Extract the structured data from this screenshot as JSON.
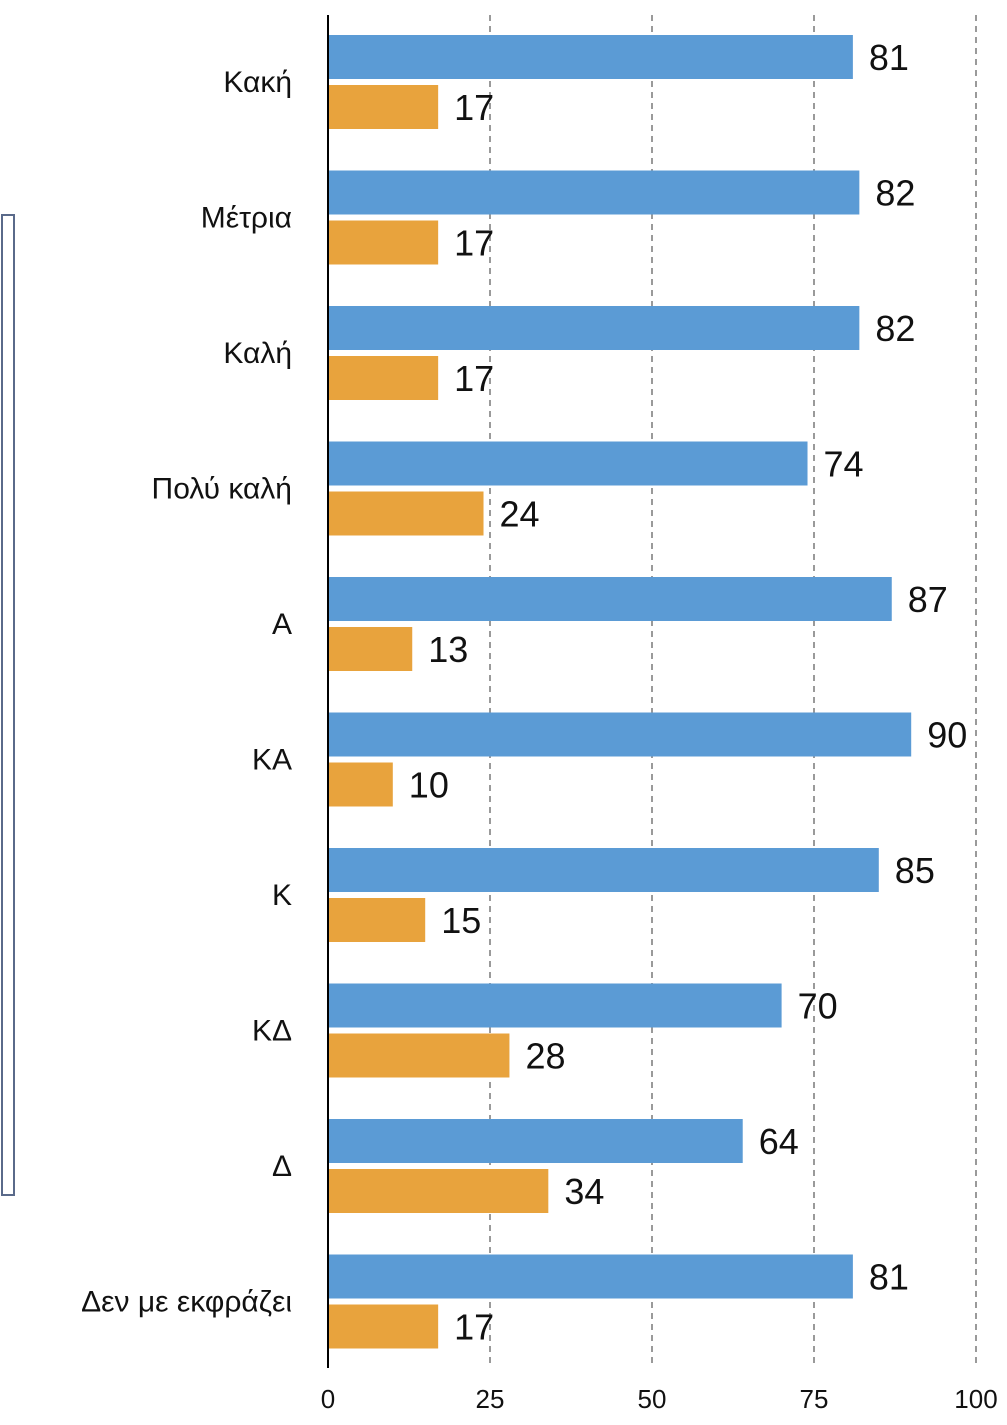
{
  "chart_data": {
    "type": "bar",
    "orientation": "horizontal",
    "categories": [
      "Κακή",
      "Μέτρια",
      "Καλή",
      "Πολύ καλή",
      "Α",
      "ΚΑ",
      "Κ",
      "ΚΔ",
      "Δ",
      "Δεν με εκφράζει"
    ],
    "series": [
      {
        "values": [
          81,
          82,
          82,
          74,
          87,
          90,
          85,
          70,
          64,
          81
        ],
        "color": "#5B9BD5"
      },
      {
        "values": [
          17,
          17,
          17,
          24,
          13,
          10,
          15,
          28,
          34,
          17
        ],
        "color": "#E8A33D"
      }
    ],
    "xlim": [
      0,
      100
    ],
    "xticks": [
      "0",
      "25",
      "50",
      "75",
      "100"
    ],
    "grid": "vertical-dashed",
    "title": "",
    "xlabel": "",
    "ylabel": "",
    "data_labels": true
  }
}
